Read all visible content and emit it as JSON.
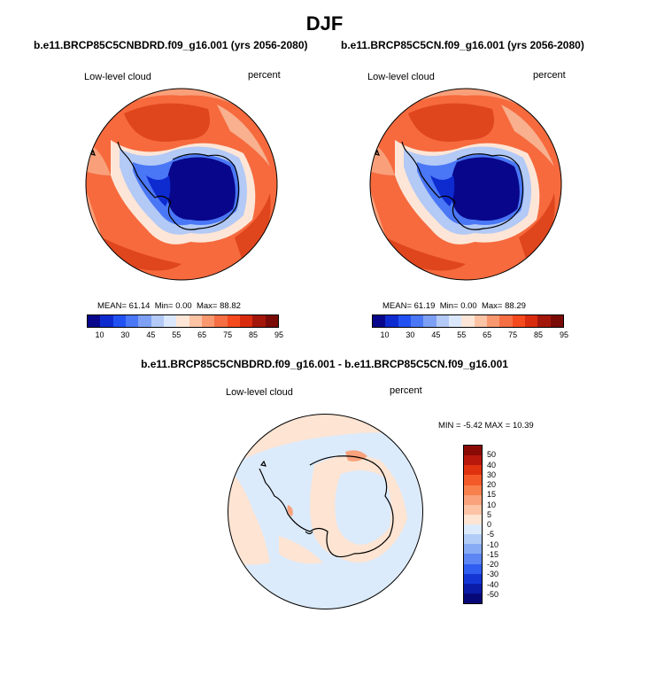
{
  "title": "DJF",
  "panels": [
    {
      "case": "b.e11.BRCP85C5CNBDRD.f09_g16.001 (yrs 2056-2080)",
      "variable": "Low-level cloud",
      "units": "percent",
      "stats": {
        "mean_label": "MEAN=",
        "mean": "61.14",
        "min_label": "Min=",
        "min": "0.00",
        "max_label": "Max=",
        "max": "88.82"
      }
    },
    {
      "case": "b.e11.BRCP85C5CN.f09_g16.001 (yrs 2056-2080)",
      "variable": "Low-level cloud",
      "units": "percent",
      "stats": {
        "mean_label": "MEAN=",
        "mean": "61.19",
        "min_label": "Min=",
        "min": "0.00",
        "max_label": "Max=",
        "max": "88.29"
      }
    }
  ],
  "abs_colorbar": {
    "ticks": [
      "10",
      "30",
      "45",
      "55",
      "65",
      "75",
      "85",
      "95"
    ],
    "colors": [
      "#08068a",
      "#0e2bd0",
      "#2251f3",
      "#4a77f5",
      "#7ea0f4",
      "#b3c9f6",
      "#dbe8fb",
      "#fde6d7",
      "#fcc3a5",
      "#f9986f",
      "#f66e44",
      "#f44a1e",
      "#d92c0e",
      "#a3160a",
      "#7a0a06"
    ]
  },
  "diff": {
    "title": "b.e11.BRCP85C5CNBDRD.f09_g16.001 - b.e11.BRCP85C5CN.f09_g16.001",
    "variable": "Low-level cloud",
    "units": "percent",
    "stats": "MIN =  -5.42 MAX =  10.39",
    "colorbar": {
      "ticks": [
        "50",
        "40",
        "30",
        "20",
        "15",
        "10",
        "5",
        "0",
        "-5",
        "-10",
        "-15",
        "-20",
        "-30",
        "-40",
        "-50"
      ],
      "colors": [
        "#8a0a05",
        "#b8170b",
        "#e0320f",
        "#f45a28",
        "#f7804d",
        "#f9a27c",
        "#fcc4a5",
        "#fde4d3",
        "#dcebfb",
        "#b1cdf7",
        "#88abf5",
        "#5b86f3",
        "#2f5ef0",
        "#1436d4",
        "#0a1ca8",
        "#070878"
      ]
    }
  }
}
